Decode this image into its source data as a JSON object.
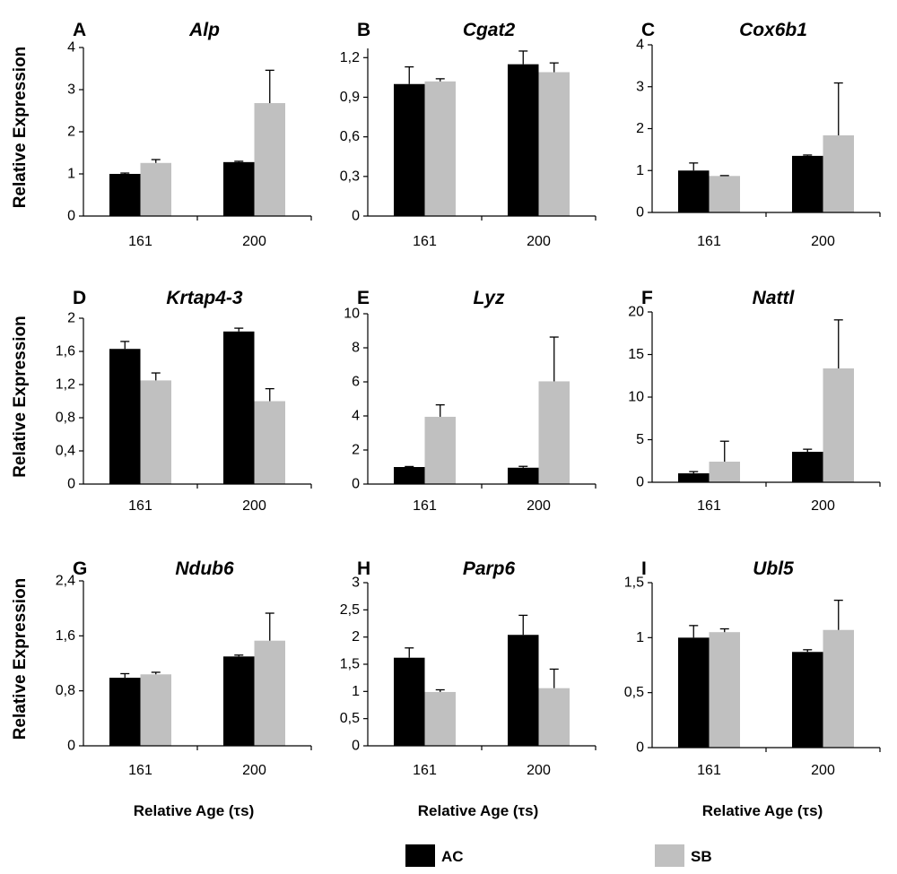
{
  "figure": {
    "ylabel": "Relative Expression",
    "xlabel": "Relative Age (τs)",
    "legend_position": "bottom",
    "grid": false,
    "legend": [
      {
        "label": "AC",
        "color": "#000000"
      },
      {
        "label": "SB",
        "color": "#c0c0c0"
      }
    ]
  },
  "chart_data": [
    {
      "panel": "A",
      "title": "Alp",
      "type": "bar",
      "categories": [
        "161",
        "200"
      ],
      "series": [
        {
          "name": "AC",
          "values": [
            1.0,
            1.28
          ],
          "error": [
            0.02,
            0.02
          ]
        },
        {
          "name": "SB",
          "values": [
            1.26,
            2.68
          ],
          "error": [
            0.08,
            0.78
          ]
        }
      ],
      "yticks": [
        0,
        1,
        2,
        3,
        4
      ],
      "ytick_labels": [
        "0",
        "1",
        "2",
        "3",
        "4"
      ],
      "ylim": [
        0,
        4
      ]
    },
    {
      "panel": "B",
      "title": "Cgat2",
      "type": "bar",
      "categories": [
        "161",
        "200"
      ],
      "series": [
        {
          "name": "AC",
          "values": [
            1.0,
            1.15
          ],
          "error": [
            0.13,
            0.1
          ]
        },
        {
          "name": "SB",
          "values": [
            1.02,
            1.09
          ],
          "error": [
            0.02,
            0.07
          ]
        }
      ],
      "yticks": [
        0,
        0.3,
        0.6,
        0.9,
        1.2
      ],
      "ytick_labels": [
        "0",
        "0,3",
        "0,6",
        "0,9",
        "1,2"
      ],
      "ylim": [
        0,
        1.27
      ]
    },
    {
      "panel": "C",
      "title": "Cox6b1",
      "type": "bar",
      "categories": [
        "161",
        "200"
      ],
      "series": [
        {
          "name": "AC",
          "values": [
            1.0,
            1.35
          ],
          "error": [
            0.18,
            0.02
          ]
        },
        {
          "name": "SB",
          "values": [
            0.87,
            1.84
          ],
          "error": [
            0.01,
            1.25
          ]
        }
      ],
      "yticks": [
        0,
        1,
        2,
        3,
        4
      ],
      "ytick_labels": [
        "0",
        "1",
        "2",
        "3",
        "4"
      ],
      "ylim": [
        0,
        4
      ]
    },
    {
      "panel": "D",
      "title": "Krtap4-3",
      "type": "bar",
      "categories": [
        "161",
        "200"
      ],
      "series": [
        {
          "name": "AC",
          "values": [
            1.63,
            1.84
          ],
          "error": [
            0.09,
            0.04
          ]
        },
        {
          "name": "SB",
          "values": [
            1.25,
            1.0
          ],
          "error": [
            0.09,
            0.15
          ]
        }
      ],
      "yticks": [
        0,
        0.4,
        0.8,
        1.2,
        1.6,
        2
      ],
      "ytick_labels": [
        "0",
        "0,4",
        "0,8",
        "1,2",
        "1,6",
        "2"
      ],
      "ylim": [
        0,
        2
      ]
    },
    {
      "panel": "E",
      "title": "Lyz",
      "type": "bar",
      "categories": [
        "161",
        "200"
      ],
      "series": [
        {
          "name": "AC",
          "values": [
            1.0,
            0.96
          ],
          "error": [
            0.03,
            0.08
          ]
        },
        {
          "name": "SB",
          "values": [
            3.95,
            6.03
          ],
          "error": [
            0.7,
            2.6
          ]
        }
      ],
      "yticks": [
        0,
        2,
        4,
        6,
        8,
        10
      ],
      "ytick_labels": [
        "0",
        "2",
        "4",
        "6",
        "8",
        "10"
      ],
      "ylim": [
        0,
        10
      ]
    },
    {
      "panel": "F",
      "title": "Nattl",
      "type": "bar",
      "categories": [
        "161",
        "200"
      ],
      "series": [
        {
          "name": "AC",
          "values": [
            1.05,
            3.58
          ],
          "error": [
            0.2,
            0.3
          ]
        },
        {
          "name": "SB",
          "values": [
            2.42,
            13.37
          ],
          "error": [
            2.4,
            5.7
          ]
        }
      ],
      "yticks": [
        0,
        5,
        10,
        15,
        20
      ],
      "ytick_labels": [
        "0",
        "5",
        "10",
        "15",
        "20"
      ],
      "ylim": [
        0,
        20
      ]
    },
    {
      "panel": "G",
      "title": "Ndub6",
      "type": "bar",
      "categories": [
        "161",
        "200"
      ],
      "series": [
        {
          "name": "AC",
          "values": [
            0.99,
            1.3
          ],
          "error": [
            0.06,
            0.02
          ]
        },
        {
          "name": "SB",
          "values": [
            1.04,
            1.53
          ],
          "error": [
            0.03,
            0.4
          ]
        }
      ],
      "yticks": [
        0,
        0.8,
        1.6,
        2.4
      ],
      "ytick_labels": [
        "0",
        "0,8",
        "1,6",
        "2,4"
      ],
      "ylim": [
        0,
        2.4
      ]
    },
    {
      "panel": "H",
      "title": "Parp6",
      "type": "bar",
      "categories": [
        "161",
        "200"
      ],
      "series": [
        {
          "name": "AC",
          "values": [
            1.62,
            2.04
          ],
          "error": [
            0.18,
            0.36
          ]
        },
        {
          "name": "SB",
          "values": [
            0.99,
            1.06
          ],
          "error": [
            0.04,
            0.35
          ]
        }
      ],
      "yticks": [
        0,
        0.5,
        1,
        1.5,
        2,
        2.5,
        3
      ],
      "ytick_labels": [
        "0",
        "0,5",
        "1",
        "1,5",
        "2",
        "2,5",
        "3"
      ],
      "ylim": [
        0,
        3
      ]
    },
    {
      "panel": "I",
      "title": "Ubl5",
      "type": "bar",
      "categories": [
        "161",
        "200"
      ],
      "series": [
        {
          "name": "AC",
          "values": [
            1.0,
            0.87
          ],
          "error": [
            0.11,
            0.02
          ]
        },
        {
          "name": "SB",
          "values": [
            1.05,
            1.07
          ],
          "error": [
            0.03,
            0.27
          ]
        }
      ],
      "yticks": [
        0,
        0.5,
        1,
        1.5
      ],
      "ytick_labels": [
        "0",
        "0,5",
        "1",
        "1,5"
      ],
      "ylim": [
        0,
        1.5
      ]
    }
  ]
}
